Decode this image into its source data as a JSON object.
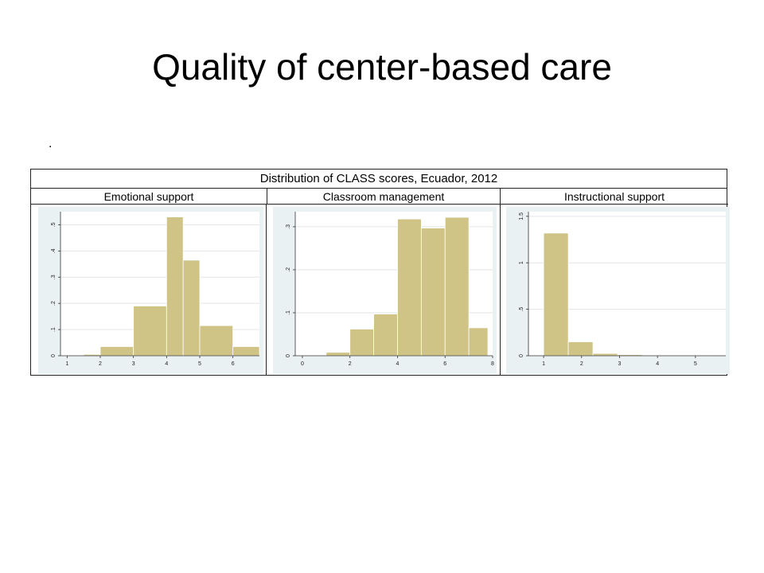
{
  "slide": {
    "title": "Quality of center-based care",
    "dot": "."
  },
  "figure": {
    "title": "Distribution of CLASS scores, Ecuador, 2012"
  },
  "colors": {
    "bar_fill": "#cfc486",
    "bar_stroke": "#ffffff",
    "plot_bg": "#ffffff",
    "outer_bg": "#eaf1f3",
    "grid": "#e2e6e6"
  },
  "chart_data": [
    {
      "type": "bar",
      "panel": "Emotional support",
      "bins": [
        [
          1.5,
          2
        ],
        [
          2,
          3
        ],
        [
          3,
          4
        ],
        [
          4,
          4.5
        ],
        [
          4.5,
          5
        ],
        [
          5,
          6
        ],
        [
          6,
          6.8
        ]
      ],
      "densities": [
        0.005,
        0.035,
        0.19,
        0.53,
        0.365,
        0.115,
        0.035
      ],
      "xlim": [
        0.8,
        6.8
      ],
      "ylim": [
        0,
        0.55
      ],
      "xticks": [
        1,
        2,
        3,
        4,
        5,
        6
      ],
      "xtick_labels": [
        "1",
        "2",
        "3",
        "4",
        "5",
        "6"
      ],
      "yticks": [
        0,
        0.1,
        0.2,
        0.3,
        0.4,
        0.5
      ],
      "ytick_labels": [
        "0",
        ".1",
        ".2",
        ".3",
        ".4",
        ".5"
      ],
      "grid": true
    },
    {
      "type": "bar",
      "panel": "Classroom management",
      "bins": [
        [
          1,
          2
        ],
        [
          2,
          3
        ],
        [
          3,
          4
        ],
        [
          4,
          5
        ],
        [
          5,
          6
        ],
        [
          6,
          7
        ],
        [
          7,
          7.8
        ]
      ],
      "densities": [
        0.008,
        0.062,
        0.097,
        0.318,
        0.297,
        0.322,
        0.065
      ],
      "xlim": [
        -0.3,
        8
      ],
      "ylim": [
        0,
        0.335
      ],
      "xticks": [
        0,
        2,
        4,
        6,
        8
      ],
      "xtick_labels": [
        "0",
        "2",
        "4",
        "6",
        "8"
      ],
      "yticks": [
        0,
        0.1,
        0.2,
        0.3
      ],
      "ytick_labels": [
        "0",
        ".1",
        ".2",
        ".3"
      ],
      "grid": true
    },
    {
      "type": "bar",
      "panel": "Instructional support",
      "bins": [
        [
          1,
          1.65
        ],
        [
          1.65,
          2.3
        ],
        [
          2.3,
          2.95
        ],
        [
          2.95,
          3.6
        ],
        [
          3.6,
          4.25
        ],
        [
          4.25,
          4.9
        ],
        [
          4.9,
          5.55
        ]
      ],
      "densities": [
        1.32,
        0.15,
        0.025,
        0.012,
        0.006,
        0.002,
        0.001
      ],
      "xlim": [
        0.6,
        5.8
      ],
      "ylim": [
        0,
        1.55
      ],
      "xticks": [
        1,
        2,
        3,
        4,
        5
      ],
      "xtick_labels": [
        "1",
        "2",
        "3",
        "4",
        "5"
      ],
      "yticks": [
        0,
        0.5,
        1,
        1.5
      ],
      "ytick_labels": [
        "0",
        ".5",
        "1",
        "1.5"
      ],
      "grid": true
    }
  ]
}
